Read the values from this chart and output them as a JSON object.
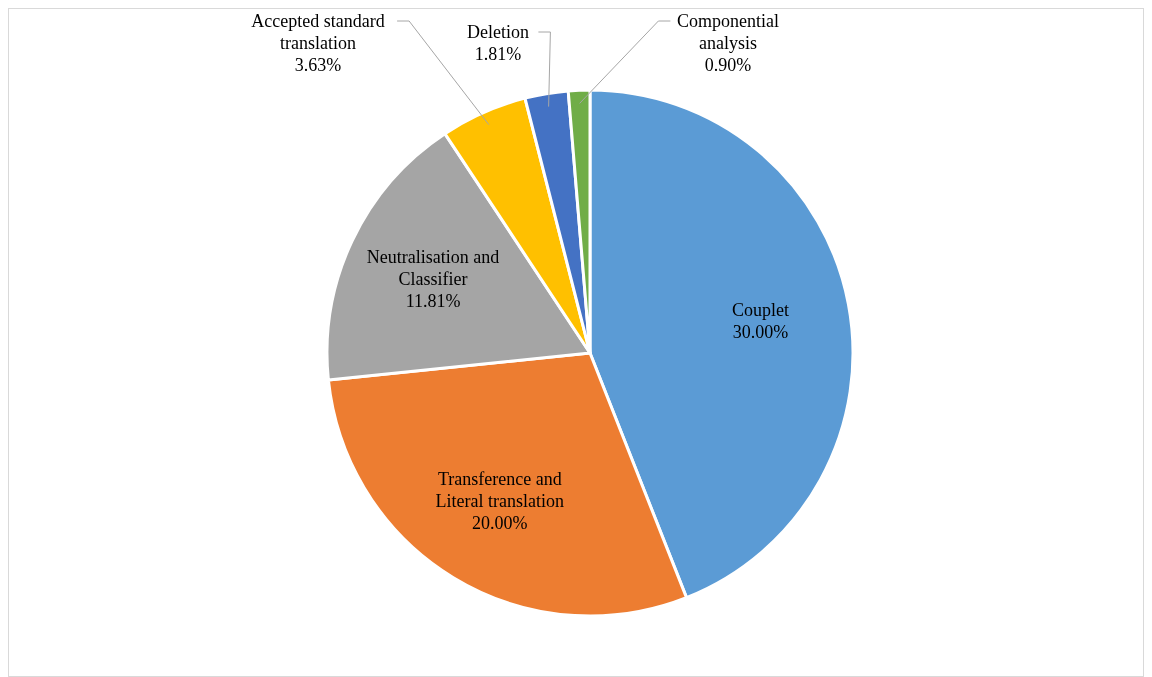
{
  "chart_data": {
    "type": "pie",
    "categories": [
      "Couplet",
      "Transference and Literal translation",
      "Neutralisation and Classifier",
      "Accepted standard translation",
      "Deletion",
      "Componential analysis"
    ],
    "values": [
      30.0,
      20.0,
      11.81,
      3.63,
      1.81,
      0.9
    ],
    "colors": [
      "#5b9bd5",
      "#ed7d31",
      "#a5a5a5",
      "#ffc000",
      "#4472c4",
      "#70ad47"
    ],
    "value_labels": [
      "30.00%",
      "20.00%",
      "11.81%",
      "3.63%",
      "1.81%",
      "0.90%"
    ]
  }
}
